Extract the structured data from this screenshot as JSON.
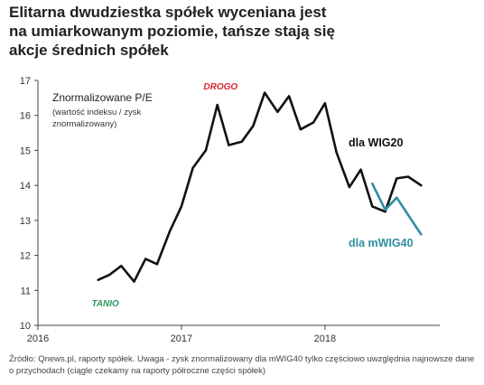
{
  "title_lines": [
    "Elitarna dwudziestka spółek wyceniana jest",
    "na umiarkowanym poziomie, tańsze stają się",
    "akcje średnich spółek"
  ],
  "source_text": "Źródło: Qnews.pl, raporty spółek. Uwaga - zysk znormalizowany dla mWIG40 tylko częściowo uwzględnia najnowsze dane o przychodach (ciągle czekamy na raporty półroczne części spółek)",
  "colors": {
    "wig20": "#111111",
    "mwig40": "#2e8fa1",
    "drogo": "#d8262e",
    "tanio": "#2e9a5c",
    "axis": "#444444"
  },
  "chart_data": {
    "type": "line",
    "ylabel": "Znormalizowane P/E",
    "ylabel_note": [
      "(wartość indeksu / zysk",
      "znormalizowany)"
    ],
    "ylim": [
      10,
      17
    ],
    "yticks": [
      10,
      11,
      12,
      13,
      14,
      15,
      16,
      17
    ],
    "xlim": [
      2016.0,
      2018.8
    ],
    "xticks": [
      2016,
      2017,
      2018
    ],
    "xtick_labels": [
      "2016",
      "2017",
      "2018"
    ],
    "grid": false,
    "series": [
      {
        "name": "dla WIG20",
        "color": "#111111",
        "x": [
          2016.42,
          2016.5,
          2016.58,
          2016.67,
          2016.75,
          2016.83,
          2016.92,
          2017.0,
          2017.08,
          2017.17,
          2017.25,
          2017.33,
          2017.42,
          2017.5,
          2017.58,
          2017.67,
          2017.75,
          2017.83,
          2017.92,
          2018.0,
          2018.08,
          2018.17,
          2018.25,
          2018.33,
          2018.42,
          2018.5,
          2018.58,
          2018.67
        ],
        "values": [
          11.3,
          11.45,
          11.7,
          11.25,
          11.9,
          11.75,
          12.7,
          13.4,
          14.5,
          15.0,
          16.3,
          15.15,
          15.25,
          15.7,
          16.65,
          16.1,
          16.55,
          15.6,
          15.8,
          16.35,
          14.95,
          13.95,
          14.45,
          13.4,
          13.25,
          14.2,
          14.25,
          14.0
        ]
      },
      {
        "name": "dla mWIG40",
        "color": "#2e8fa1",
        "x": [
          2018.33,
          2018.42,
          2018.5,
          2018.67
        ],
        "values": [
          14.05,
          13.3,
          13.65,
          12.6
        ]
      }
    ],
    "annotations": [
      {
        "text": "DROGO",
        "x": 2017.5,
        "y": 16.85
      },
      {
        "text": "TANIO",
        "x": 2016.5,
        "y": 10.9
      }
    ]
  }
}
